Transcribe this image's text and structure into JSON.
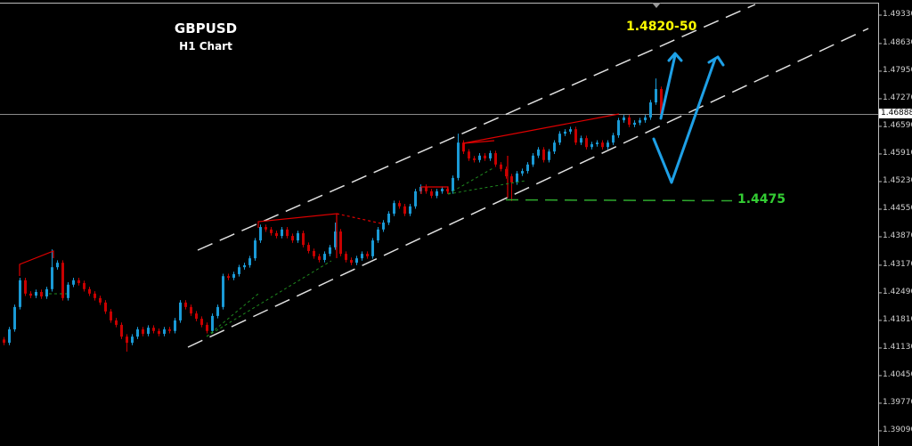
{
  "header": {
    "symbol": "GBPUSD",
    "timeframe": "H1 Chart"
  },
  "annotations": {
    "target_label": "1.4820-50",
    "support_label": "1.4475",
    "target_color": "#ffff00",
    "support_color": "#33cc33",
    "arrow_color": "#1ea0e6"
  },
  "chart_data": {
    "type": "candlestick",
    "title": "GBPUSD",
    "subtitle": "H1 Chart",
    "ylim": [
      1.388,
      1.497
    ],
    "y_ticks": [
      "1.49330",
      "1.48630",
      "1.47950",
      "1.47270",
      "1.46590",
      "1.45910",
      "1.45230",
      "1.44550",
      "1.43870",
      "1.43170",
      "1.42490",
      "1.41810",
      "1.41130",
      "1.40450",
      "1.39770",
      "1.39090"
    ],
    "current_price": "1.46888",
    "support_level": 1.4475,
    "target_zone": [
      1.482,
      1.485
    ],
    "grid": false,
    "colors": {
      "up": "#1a9ad6",
      "down": "#c80000",
      "background": "#000000",
      "axis": "#c0c0c0"
    },
    "closes": [
      1.4126,
      1.4159,
      1.4214,
      1.428,
      1.4247,
      1.4242,
      1.4251,
      1.424,
      1.4258,
      1.4312,
      1.4323,
      1.4236,
      1.4269,
      1.428,
      1.4273,
      1.4258,
      1.4247,
      1.4236,
      1.4225,
      1.4203,
      1.4181,
      1.417,
      1.4141,
      1.4126,
      1.4141,
      1.4159,
      1.4148,
      1.4163,
      1.4155,
      1.4148,
      1.4159,
      1.4155,
      1.4181,
      1.4225,
      1.4214,
      1.4198,
      1.4185,
      1.417,
      1.4155,
      1.4192,
      1.4214,
      1.429,
      1.4286,
      1.4295,
      1.4312,
      1.4317,
      1.4334,
      1.4378,
      1.4411,
      1.4405,
      1.4396,
      1.4389,
      1.4405,
      1.4389,
      1.4378,
      1.4396,
      1.4367,
      1.4352,
      1.4339,
      1.433,
      1.4345,
      1.4361,
      1.44,
      1.4345,
      1.433,
      1.4323,
      1.4334,
      1.4345,
      1.4339,
      1.4378,
      1.4405,
      1.4422,
      1.4444,
      1.447,
      1.4462,
      1.4444,
      1.4462,
      1.4499,
      1.451,
      1.4499,
      1.4488,
      1.4499,
      1.4505,
      1.4499,
      1.4532,
      1.4619,
      1.4597,
      1.458,
      1.4576,
      1.4587,
      1.458,
      1.4593,
      1.4565,
      1.4554,
      1.4536,
      1.4521,
      1.4543,
      1.4549,
      1.4565,
      1.4587,
      1.4602,
      1.4576,
      1.4597,
      1.4619,
      1.4641,
      1.4646,
      1.4652,
      1.4619,
      1.463,
      1.4608,
      1.4615,
      1.4619,
      1.4608,
      1.4619,
      1.4637,
      1.4674,
      1.4681,
      1.4663,
      1.4668,
      1.4674,
      1.4681,
      1.4718,
      1.4751,
      1.469
    ],
    "notable_highs": [
      {
        "bar": 9,
        "price": 1.4356
      },
      {
        "bar": 62,
        "price": 1.4422
      },
      {
        "bar": 85,
        "price": 1.4641
      },
      {
        "bar": 122,
        "price": 1.4777
      }
    ],
    "notable_lows": [
      {
        "bar": 23,
        "price": 1.4104
      },
      {
        "bar": 95,
        "price": 1.4475
      }
    ]
  }
}
